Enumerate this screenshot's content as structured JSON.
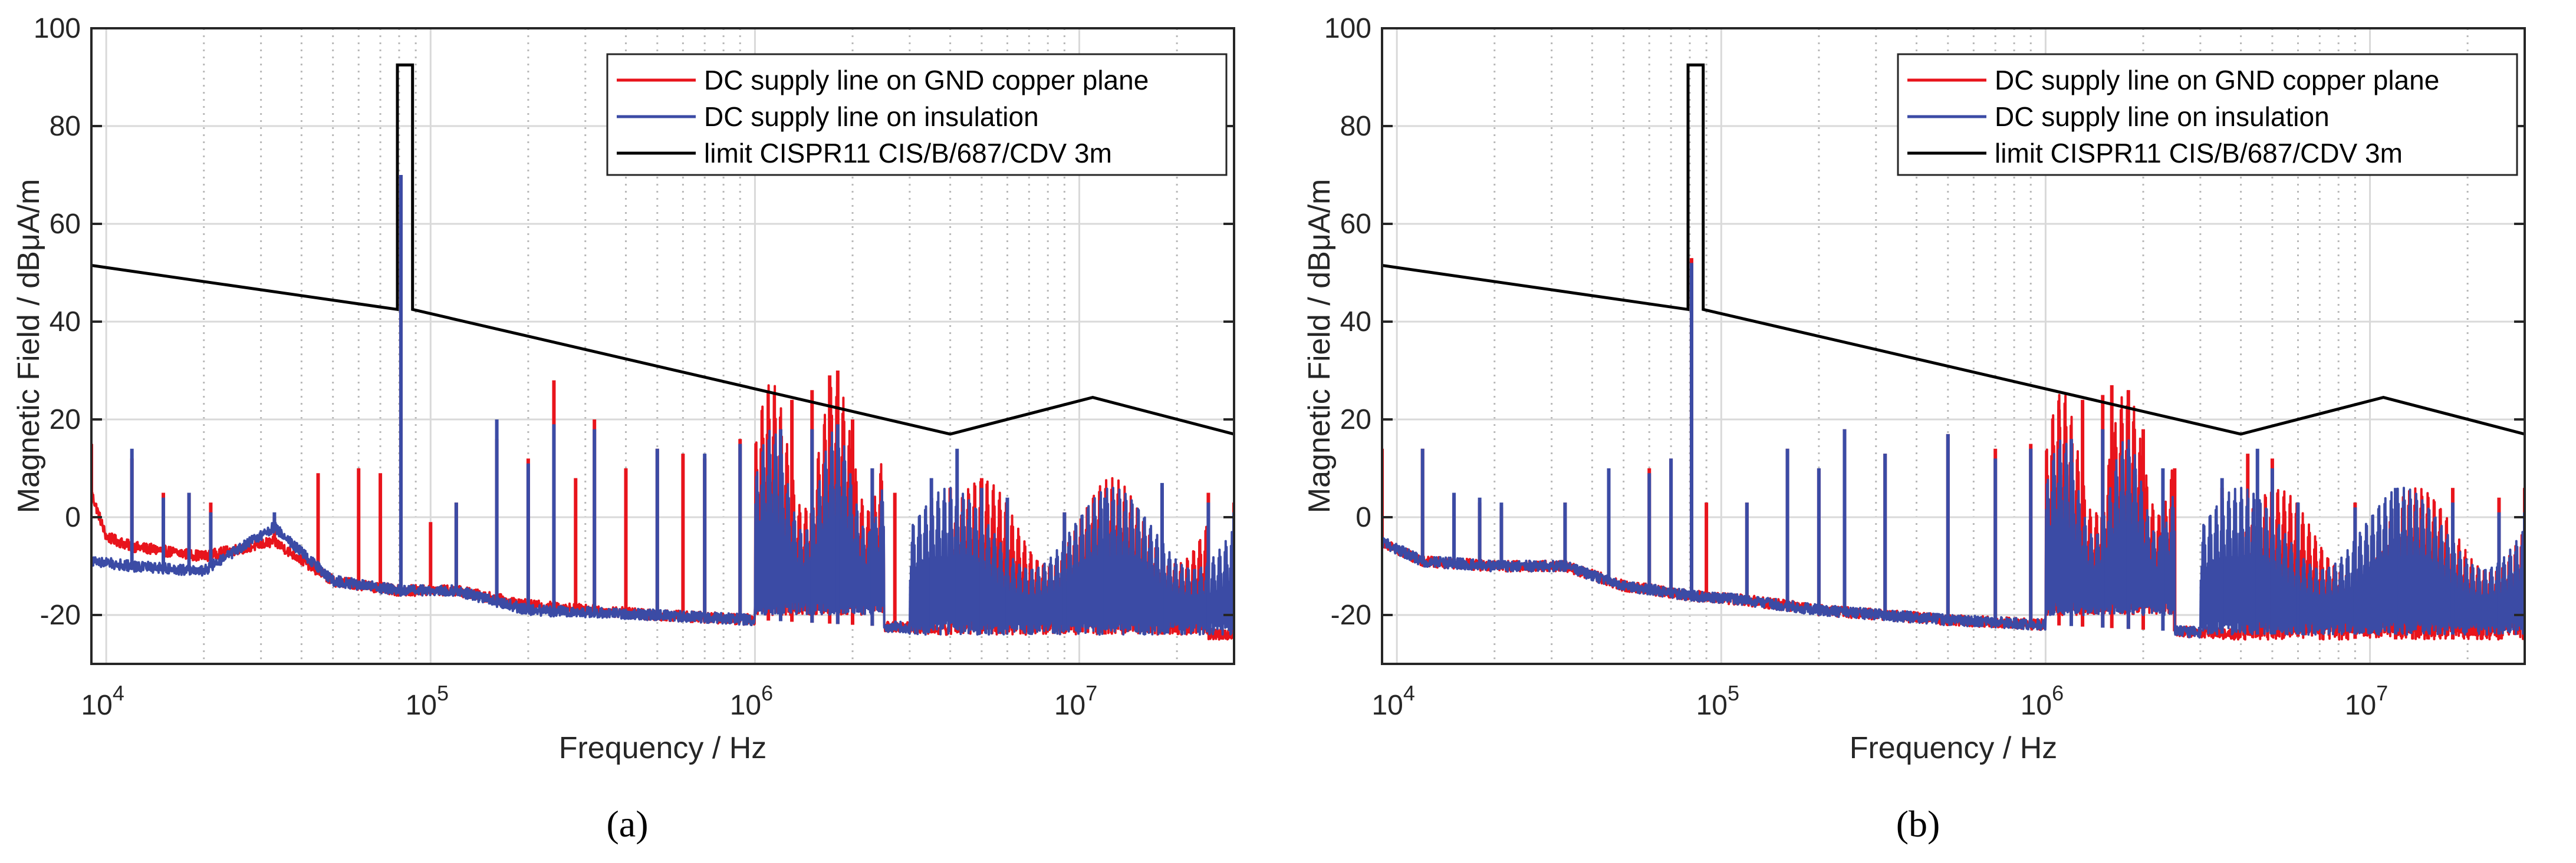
{
  "chart_data": [
    {
      "type": "line",
      "panel": "a",
      "caption": "(a)",
      "xlabel": "Frequency / Hz",
      "ylabel": "Magnetic Field / dBμA/m",
      "xscale": "log",
      "xlim": [
        9000,
        30000000
      ],
      "ylim": [
        -30,
        100
      ],
      "yticks": [
        "-20",
        "0",
        "20",
        "40",
        "60",
        "80",
        "100"
      ],
      "xticks": [
        {
          "base": "10",
          "exp": "4"
        },
        {
          "base": "10",
          "exp": "5"
        },
        {
          "base": "10",
          "exp": "6"
        },
        {
          "base": "10",
          "exp": "7"
        }
      ],
      "grid": true,
      "legend_position": "top-right",
      "series": [
        {
          "name": "DC supply line on GND copper plane",
          "color": "#e8141c",
          "baseline": [
            [
              9000,
              5
            ],
            [
              10000,
              -4
            ],
            [
              12000,
              -6
            ],
            [
              20000,
              -8
            ],
            [
              33000,
              -5
            ],
            [
              50000,
              -13
            ],
            [
              80000,
              -15
            ],
            [
              120000,
              -15
            ],
            [
              200000,
              -18
            ],
            [
              500000,
              -20
            ],
            [
              1000000,
              -21
            ],
            [
              2000000,
              -22
            ],
            [
              4000000,
              -23
            ],
            [
              10000000,
              -24
            ],
            [
              30000000,
              -24
            ]
          ],
          "peaks": [
            [
              9000,
              15
            ],
            [
              12000,
              12
            ],
            [
              15000,
              5
            ],
            [
              18000,
              5
            ],
            [
              21000,
              3
            ],
            [
              33000,
              0
            ],
            [
              45000,
              9
            ],
            [
              60000,
              10
            ],
            [
              70000,
              9
            ],
            [
              81000,
              70
            ],
            [
              100000,
              -1
            ],
            [
              120000,
              3
            ],
            [
              160000,
              16
            ],
            [
              200000,
              12
            ],
            [
              240000,
              28
            ],
            [
              280000,
              8
            ],
            [
              320000,
              20
            ],
            [
              400000,
              10
            ],
            [
              500000,
              14
            ],
            [
              600000,
              13
            ],
            [
              700000,
              12
            ],
            [
              900000,
              16
            ],
            [
              1100000,
              20
            ],
            [
              1300000,
              24
            ],
            [
              1500000,
              26
            ],
            [
              1700000,
              29
            ],
            [
              1800000,
              30
            ],
            [
              2000000,
              20
            ],
            [
              2300000,
              10
            ],
            [
              2700000,
              5
            ],
            [
              3500000,
              2
            ],
            [
              4000000,
              6
            ],
            [
              5000000,
              8
            ],
            [
              6000000,
              2
            ],
            [
              9000000,
              1
            ],
            [
              12000000,
              3
            ],
            [
              18000000,
              6
            ],
            [
              25000000,
              5
            ],
            [
              30000000,
              3
            ]
          ],
          "envelope_bands": [
            [
              4000000,
              25000000,
              -24,
              8
            ],
            [
              1000000,
              2500000,
              -20,
              28
            ]
          ]
        },
        {
          "name": "DC supply line on insulation",
          "color": "#3b4ba5",
          "baseline": [
            [
              9000,
              -9
            ],
            [
              12000,
              -10
            ],
            [
              20000,
              -11
            ],
            [
              33000,
              -2
            ],
            [
              50000,
              -13
            ],
            [
              80000,
              -15
            ],
            [
              120000,
              -15
            ],
            [
              200000,
              -19
            ],
            [
              500000,
              -20
            ],
            [
              1000000,
              -21
            ],
            [
              2000000,
              -22
            ],
            [
              4000000,
              -23
            ],
            [
              10000000,
              -23
            ],
            [
              30000000,
              -23
            ]
          ],
          "peaks": [
            [
              12000,
              14
            ],
            [
              15000,
              4
            ],
            [
              18000,
              5
            ],
            [
              21000,
              1
            ],
            [
              33000,
              1
            ],
            [
              81000,
              70
            ],
            [
              120000,
              3
            ],
            [
              160000,
              20
            ],
            [
              200000,
              11
            ],
            [
              240000,
              19
            ],
            [
              320000,
              18
            ],
            [
              500000,
              14
            ],
            [
              700000,
              13
            ],
            [
              900000,
              15
            ],
            [
              1200000,
              18
            ],
            [
              1500000,
              18
            ],
            [
              1800000,
              19
            ],
            [
              2300000,
              10
            ],
            [
              3500000,
              8
            ],
            [
              4200000,
              14
            ],
            [
              5000000,
              6
            ],
            [
              6000000,
              4
            ],
            [
              9000000,
              1
            ],
            [
              12000000,
              4
            ],
            [
              18000000,
              7
            ],
            [
              25000000,
              3
            ],
            [
              30000000,
              1
            ]
          ],
          "envelope_bands": [
            [
              3000000,
              30000000,
              -24,
              6
            ],
            [
              1000000,
              2500000,
              -20,
              18
            ]
          ]
        },
        {
          "name": "limit CISPR11 CIS/B/687/CDV 3m",
          "color": "#000000",
          "points": [
            [
              9000,
              51.5
            ],
            [
              79000,
              42.5
            ],
            [
              79000,
              92.5
            ],
            [
              88000,
              92.5
            ],
            [
              88000,
              42.5
            ],
            [
              4000000,
              17
            ],
            [
              11000000,
              24.5
            ],
            [
              30000000,
              17
            ]
          ]
        }
      ]
    },
    {
      "type": "line",
      "panel": "b",
      "caption": "(b)",
      "xlabel": "Frequency / Hz",
      "ylabel": "Magnetic Field / dBμA/m",
      "xscale": "log",
      "xlim": [
        9000,
        30000000
      ],
      "ylim": [
        -30,
        100
      ],
      "yticks": [
        "-20",
        "0",
        "20",
        "40",
        "60",
        "80",
        "100"
      ],
      "xticks": [
        {
          "base": "10",
          "exp": "4"
        },
        {
          "base": "10",
          "exp": "5"
        },
        {
          "base": "10",
          "exp": "6"
        },
        {
          "base": "10",
          "exp": "7"
        }
      ],
      "grid": true,
      "legend_position": "top-right",
      "series": [
        {
          "name": "DC supply line on GND copper plane",
          "color": "#e8141c",
          "baseline": [
            [
              9000,
              -5
            ],
            [
              12000,
              -9
            ],
            [
              20000,
              -10
            ],
            [
              33000,
              -10
            ],
            [
              50000,
              -14
            ],
            [
              80000,
              -16
            ],
            [
              120000,
              -17
            ],
            [
              200000,
              -19
            ],
            [
              500000,
              -21
            ],
            [
              1000000,
              -22
            ],
            [
              2000000,
              -23
            ],
            [
              4000000,
              -24
            ],
            [
              10000000,
              -25
            ],
            [
              30000000,
              -25
            ]
          ],
          "peaks": [
            [
              9000,
              14
            ],
            [
              12000,
              14
            ],
            [
              15000,
              4
            ],
            [
              18000,
              3
            ],
            [
              21000,
              2
            ],
            [
              33000,
              3
            ],
            [
              45000,
              10
            ],
            [
              60000,
              10
            ],
            [
              70000,
              12
            ],
            [
              81000,
              53
            ],
            [
              90000,
              3
            ],
            [
              120000,
              3
            ],
            [
              160000,
              14
            ],
            [
              200000,
              10
            ],
            [
              240000,
              18
            ],
            [
              320000,
              13
            ],
            [
              500000,
              17
            ],
            [
              700000,
              14
            ],
            [
              900000,
              15
            ],
            [
              1100000,
              22
            ],
            [
              1300000,
              24
            ],
            [
              1500000,
              25
            ],
            [
              1600000,
              27
            ],
            [
              1800000,
              26
            ],
            [
              2000000,
              18
            ],
            [
              2500000,
              10
            ],
            [
              3500000,
              6
            ],
            [
              4200000,
              13
            ],
            [
              5000000,
              12
            ],
            [
              6000000,
              2
            ],
            [
              9000000,
              3
            ],
            [
              12000000,
              4
            ],
            [
              18000000,
              6
            ],
            [
              25000000,
              4
            ],
            [
              30000000,
              6
            ]
          ],
          "envelope_bands": [
            [
              4000000,
              30000000,
              -25,
              6
            ],
            [
              1000000,
              2500000,
              -20,
              26
            ]
          ]
        },
        {
          "name": "DC supply line on insulation",
          "color": "#3b4ba5",
          "baseline": [
            [
              9000,
              -5
            ],
            [
              12000,
              -9
            ],
            [
              20000,
              -10
            ],
            [
              33000,
              -10
            ],
            [
              50000,
              -14
            ],
            [
              80000,
              -16
            ],
            [
              120000,
              -17
            ],
            [
              200000,
              -19
            ],
            [
              500000,
              -21
            ],
            [
              1000000,
              -22
            ],
            [
              2000000,
              -23
            ],
            [
              4000000,
              -24
            ],
            [
              10000000,
              -24
            ],
            [
              30000000,
              -24
            ]
          ],
          "peaks": [
            [
              12000,
              14
            ],
            [
              15000,
              5
            ],
            [
              18000,
              4
            ],
            [
              21000,
              3
            ],
            [
              33000,
              3
            ],
            [
              45000,
              10
            ],
            [
              60000,
              9
            ],
            [
              70000,
              12
            ],
            [
              81000,
              52
            ],
            [
              120000,
              3
            ],
            [
              160000,
              14
            ],
            [
              200000,
              10
            ],
            [
              240000,
              18
            ],
            [
              320000,
              13
            ],
            [
              500000,
              17
            ],
            [
              700000,
              12
            ],
            [
              900000,
              14
            ],
            [
              1200000,
              16
            ],
            [
              1500000,
              18
            ],
            [
              1800000,
              14
            ],
            [
              2300000,
              10
            ],
            [
              3500000,
              8
            ],
            [
              4500000,
              14
            ],
            [
              5000000,
              10
            ],
            [
              6000000,
              3
            ],
            [
              9000000,
              2
            ],
            [
              12000000,
              6
            ],
            [
              18000000,
              3
            ],
            [
              25000000,
              1
            ],
            [
              30000000,
              1
            ]
          ],
          "envelope_bands": [
            [
              3000000,
              30000000,
              -24,
              6
            ],
            [
              1000000,
              2500000,
              -20,
              16
            ]
          ]
        },
        {
          "name": "limit CISPR11 CIS/B/687/CDV 3m",
          "color": "#000000",
          "points": [
            [
              9000,
              51.5
            ],
            [
              79000,
              42.5
            ],
            [
              79000,
              92.5
            ],
            [
              88000,
              92.5
            ],
            [
              88000,
              42.5
            ],
            [
              4000000,
              17
            ],
            [
              11000000,
              24.5
            ],
            [
              30000000,
              17
            ]
          ]
        }
      ]
    }
  ]
}
